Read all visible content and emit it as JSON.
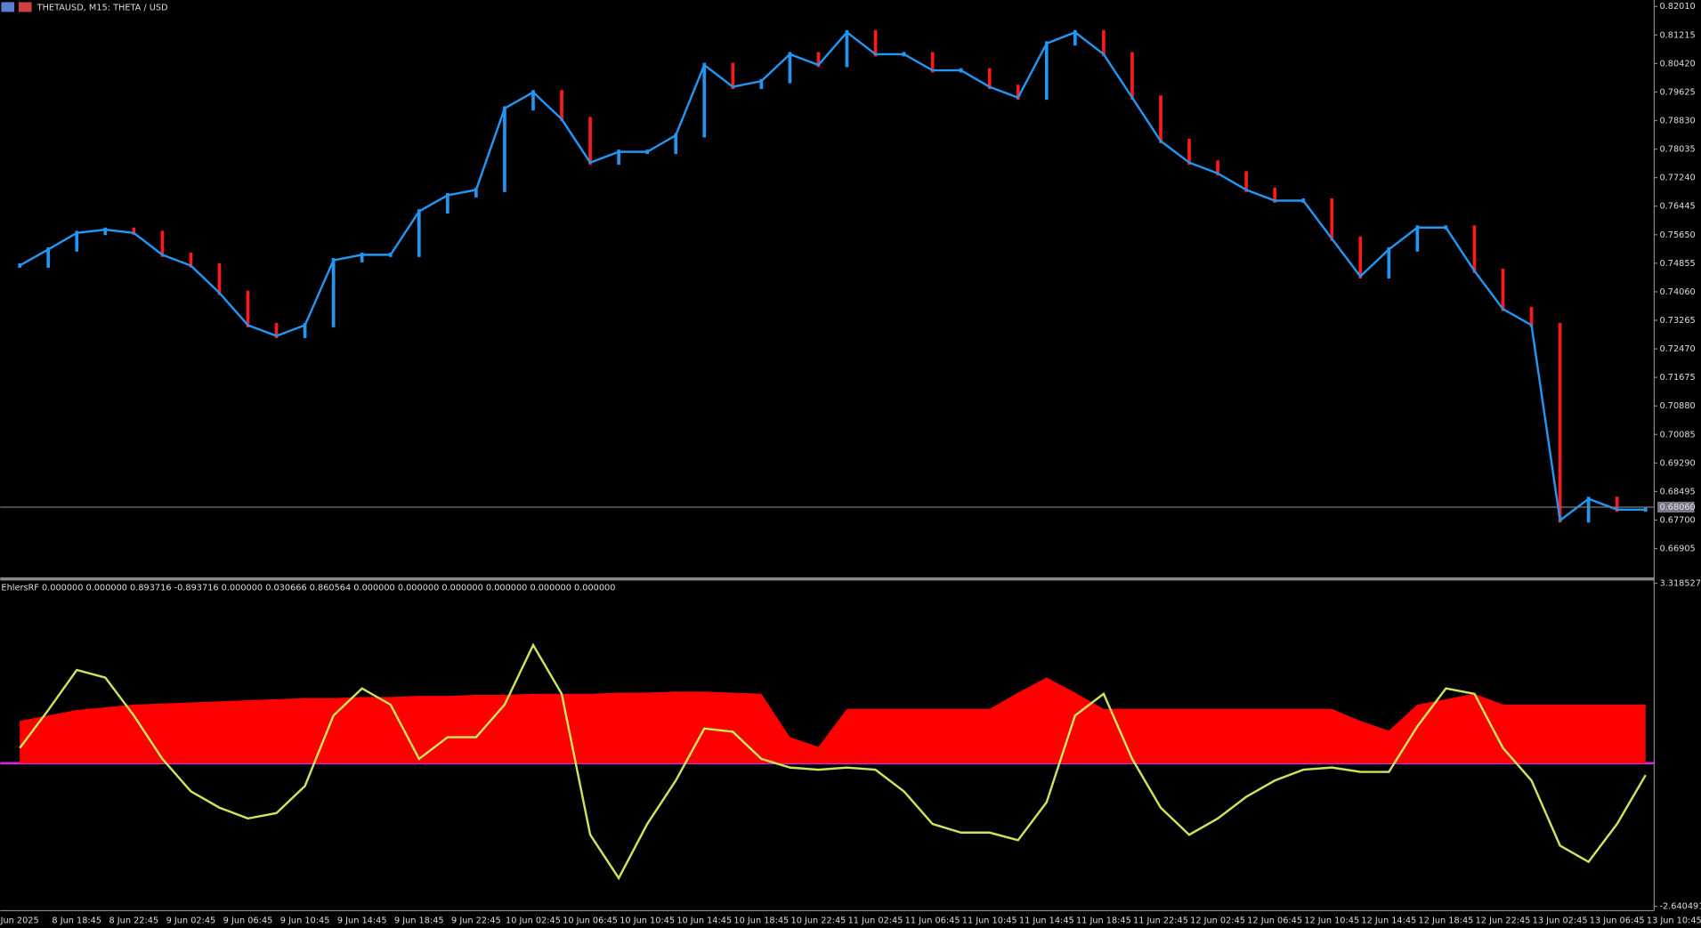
{
  "chart_data": [
    {
      "type": "line",
      "title": "THETAUSD, M15:  THETA / USD",
      "categories": [
        "Jun 2025",
        null,
        "8 Jun 18:45",
        null,
        "8 Jun 22:45",
        null,
        "9 Jun 02:45",
        null,
        "9 Jun 06:45",
        null,
        "9 Jun 10:45",
        null,
        "9 Jun 14:45",
        null,
        "9 Jun 18:45",
        null,
        "9 Jun 22:45",
        null,
        "10 Jun 02:45",
        null,
        "10 Jun 06:45",
        null,
        "10 Jun 10:45",
        null,
        "10 Jun 14:45",
        null,
        "10 Jun 18:45",
        null,
        "10 Jun 22:45",
        null,
        "11 Jun 02:45",
        null,
        "11 Jun 06:45",
        null,
        "11 Jun 10:45",
        null,
        "11 Jun 14:45",
        null,
        "11 Jun 18:45",
        null,
        "11 Jun 22:45",
        null,
        "12 Jun 02:45",
        null,
        "12 Jun 06:45",
        null,
        "12 Jun 10:45",
        null,
        "12 Jun 14:45",
        null,
        "12 Jun 18:45",
        null,
        "12 Jun 22:45",
        null,
        "13 Jun 02:45",
        null,
        "13 Jun 06:45",
        null,
        "13 Jun 10:45"
      ],
      "series": [
        {
          "color": "#2196f3",
          "up_color": "#2196f3",
          "down_color": "#ff1a1a",
          "values": [
            0.7479,
            0.7524,
            0.757,
            0.7579,
            0.757,
            0.7509,
            0.7479,
            0.7403,
            0.7313,
            0.7283,
            0.7313,
            0.7494,
            0.7509,
            0.7509,
            0.763,
            0.7675,
            0.769,
            0.7917,
            0.7962,
            0.7887,
            0.7766,
            0.7796,
            0.7796,
            0.7842,
            0.8038,
            0.7977,
            0.7993,
            0.8068,
            0.8038,
            0.8129,
            0.8068,
            0.8068,
            0.8023,
            0.8023,
            0.7977,
            0.7947,
            0.8098,
            0.8129,
            0.8068,
            0.7947,
            0.7826,
            0.7766,
            0.7736,
            0.769,
            0.766,
            0.766,
            0.7554,
            0.7449,
            0.7524,
            0.7585,
            0.7585,
            0.7464,
            0.7358,
            0.7313,
            0.6769,
            0.6829,
            0.6799,
            0.6799,
            null
          ]
        }
      ],
      "ylim": [
        0.6612,
        0.8219
      ],
      "yticks": [
        {
          "value": 0.8201,
          "label": "0.82010"
        },
        0.81215,
        {
          "value": 0.8042,
          "label": "0.80420"
        },
        0.79625,
        {
          "value": 0.7883,
          "label": "0.78830"
        },
        0.78035,
        {
          "value": 0.7724,
          "label": "0.77240"
        },
        0.76445,
        {
          "value": 0.7565,
          "label": "0.75650"
        },
        0.74855,
        {
          "value": 0.7406,
          "label": "0.74060"
        },
        0.73265,
        {
          "value": 0.7247,
          "label": "0.72470"
        },
        0.71675,
        {
          "value": 0.7088,
          "label": "0.70880"
        },
        0.70085,
        {
          "value": 0.6929,
          "label": "0.69290"
        },
        0.68495,
        {
          "value": 0.677,
          "label": "0.67700"
        },
        0.66905
      ],
      "last_price": {
        "value": 0.6806,
        "label": "0.68060"
      },
      "grid": false
    },
    {
      "type": "line",
      "title": "EhlersRF 0.000000 0.000000 0.893716 -0.893716 0.000000 0.030666 0.860564 0.000000 0.000000 0.000000 0.000000 0.000000 0.000000",
      "series": [
        {
          "color": "#ff0000",
          "area": true,
          "values": [
            0.78,
            0.88,
            0.98,
            1.03,
            1.08,
            1.1,
            1.12,
            1.14,
            1.16,
            1.18,
            1.2,
            1.2,
            1.22,
            1.22,
            1.24,
            1.24,
            1.26,
            1.26,
            1.28,
            1.28,
            1.28,
            1.3,
            1.3,
            1.32,
            1.32,
            1.3,
            1.28,
            0.48,
            0.3,
            1.0,
            1.0,
            1.0,
            1.0,
            1.0,
            1.0,
            1.3,
            1.58,
            1.3,
            1.0,
            1.0,
            1.0,
            1.0,
            1.0,
            1.0,
            1.0,
            1.0,
            1.0,
            0.78,
            0.6,
            1.08,
            1.18,
            1.28,
            1.08,
            1.08,
            1.08,
            1.08,
            1.08,
            1.08,
            null
          ]
        },
        {
          "color": "#c8e65a",
          "values": [
            0.2791,
            0.979,
            1.7188,
            1.5788,
            0.879,
            0.0791,
            -0.5207,
            -0.8207,
            -1.0206,
            -0.9207,
            -0.4208,
            0.879,
            1.3789,
            1.079,
            0.0791,
            0.4791,
            0.4791,
            1.079,
            2.1787,
            1.2789,
            -1.3206,
            -2.1204,
            -1.1206,
            -0.3208,
            0.639,
            0.579,
            0.0791,
            -0.0808,
            -0.1208,
            -0.0808,
            -0.1208,
            -0.5207,
            -1.1206,
            -1.2806,
            -1.2806,
            -1.4206,
            -0.7207,
            0.879,
            1.2789,
            0.0791,
            -0.8207,
            -1.3206,
            -1.0206,
            -0.6207,
            -0.3208,
            -0.1208,
            -0.0808,
            -0.1608,
            -0.1608,
            0.679,
            1.3789,
            1.2789,
            0.2791,
            -0.3208,
            -1.5205,
            -1.8205,
            -1.1206,
            -0.2208,
            null
          ]
        }
      ],
      "ylim": [
        -2.7205,
        3.3585
      ],
      "yticks": [
        3.318527,
        -2.640491
      ]
    }
  ]
}
